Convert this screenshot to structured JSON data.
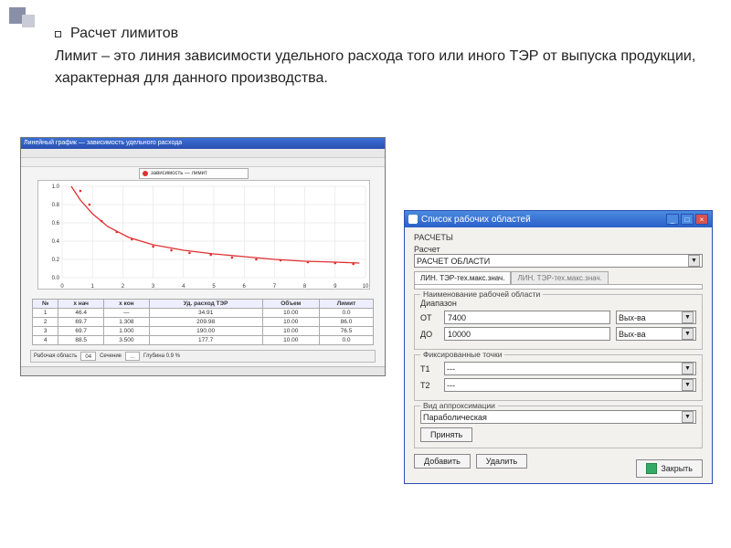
{
  "decoration": {
    "color1": "#8a8fa8",
    "color2": "#c9cbd6"
  },
  "heading": "Расчет лимитов",
  "paragraph": "Лимит – это линия зависимости удельного расхода того или иного ТЭР от выпуска продукции, характерная для данного производства.",
  "chart_window": {
    "title": "Линейный график — зависимость удельного расхода",
    "legend": "зависимость — лимит",
    "chart": {
      "type": "scatter-with-fit",
      "background_color": "#ffffff",
      "grid_color": "#dddddd",
      "curve_color": "#e03030",
      "point_color": "#e03030",
      "xlim": [
        0,
        10
      ],
      "ylim": [
        0,
        1.0
      ],
      "xtick_step": 1,
      "ytick_step": 0.2,
      "points": [
        {
          "x": 0.6,
          "y": 0.95
        },
        {
          "x": 0.9,
          "y": 0.8
        },
        {
          "x": 1.3,
          "y": 0.62
        },
        {
          "x": 1.8,
          "y": 0.5
        },
        {
          "x": 2.3,
          "y": 0.42
        },
        {
          "x": 3.0,
          "y": 0.34
        },
        {
          "x": 3.6,
          "y": 0.3
        },
        {
          "x": 4.2,
          "y": 0.27
        },
        {
          "x": 4.9,
          "y": 0.25
        },
        {
          "x": 5.6,
          "y": 0.22
        },
        {
          "x": 6.4,
          "y": 0.2
        },
        {
          "x": 7.2,
          "y": 0.19
        },
        {
          "x": 8.1,
          "y": 0.17
        },
        {
          "x": 9.0,
          "y": 0.16
        },
        {
          "x": 9.6,
          "y": 0.15
        }
      ],
      "curve": [
        {
          "x": 0.3,
          "y": 1.0
        },
        {
          "x": 0.6,
          "y": 0.85
        },
        {
          "x": 1.0,
          "y": 0.7
        },
        {
          "x": 1.5,
          "y": 0.56
        },
        {
          "x": 2.2,
          "y": 0.44
        },
        {
          "x": 3.0,
          "y": 0.36
        },
        {
          "x": 4.0,
          "y": 0.3
        },
        {
          "x": 5.0,
          "y": 0.26
        },
        {
          "x": 6.0,
          "y": 0.23
        },
        {
          "x": 7.0,
          "y": 0.2
        },
        {
          "x": 8.0,
          "y": 0.18
        },
        {
          "x": 9.0,
          "y": 0.17
        },
        {
          "x": 9.8,
          "y": 0.16
        }
      ],
      "line_width": 1.3,
      "marker_size": 1.3
    },
    "table": {
      "columns": [
        "№",
        "x нач",
        "x кон",
        "Уд. расход ТЭР",
        "Объем",
        "Лимит"
      ],
      "rows": [
        [
          "1",
          "46.4",
          "—",
          "34.91",
          "10.00",
          "0.0"
        ],
        [
          "2",
          "69.7",
          "1.308",
          "209.98",
          "10.00",
          "86.0"
        ],
        [
          "3",
          "69.7",
          "1.000",
          "190.00",
          "10.00",
          "76.5"
        ],
        [
          "4",
          "88.5",
          "3.500",
          "177.7",
          "10.00",
          "0.0"
        ]
      ],
      "header_bg": "#eeeeff",
      "border_color": "#aaaaaa"
    },
    "bottombar": {
      "label1": "Рабочая область",
      "field1": "04",
      "label2": "Сечение",
      "field2": "…",
      "label3": "Глубина 0.9 %"
    }
  },
  "dialog": {
    "title": "Список рабочих областей",
    "section_raschety": "РАСЧЕТЫ",
    "prompt": "Расчет",
    "combo_value": "РАСЧЕТ ОБЛАСТИ",
    "tabs": {
      "active": "ЛИН. ТЭР-тех.макс.знач.",
      "inactive": "ЛИН. ТЭР-тех.макс.знач."
    },
    "range_legend": "Наименование рабочей области",
    "range_label": "Диапазон",
    "from_lbl": "ОТ",
    "to_lbl": "ДО",
    "from_value": "7400",
    "to_value": "10000",
    "unit": "Вых-ва",
    "fix_legend": "Фиксированные точки",
    "t1_lbl": "Т1",
    "t2_lbl": "Т2",
    "t1_value": "---",
    "t2_value": "---",
    "apx_legend": "Вид аппроксимации",
    "apx_value": "Параболическая",
    "btn_apply": "Принять",
    "btn_add": "Добавить",
    "btn_del": "Удалить",
    "btn_close": "Закрыть"
  }
}
